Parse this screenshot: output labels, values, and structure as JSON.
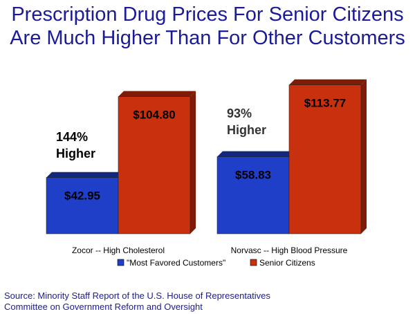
{
  "title": {
    "line1": "Prescription Drug Prices For Senior Citizens",
    "line2": "Are Much Higher Than For Other Customers"
  },
  "source": {
    "line1": "Source:  Minority Staff Report of the U.S. House of Representatives",
    "line2": "Committee on Government Reform and Oversight"
  },
  "colors": {
    "title": "#1b1b9a",
    "blue": "#1f3fc8",
    "red": "#c8300e",
    "blue_side": "#12287e",
    "red_side": "#7e1c07"
  },
  "chart_data": {
    "type": "bar",
    "categories": [
      "Zocor -- High Cholesterol",
      "Norvasc -- High Blood Pressure"
    ],
    "series": [
      {
        "name": "\"Most Favored Customers\"",
        "values": [
          42.95,
          58.83
        ],
        "labels": [
          "$42.95",
          "$58.83"
        ]
      },
      {
        "name": "Senior Citizens",
        "values": [
          104.8,
          113.77
        ],
        "labels": [
          "$104.80",
          "$113.77"
        ]
      }
    ],
    "annotations": [
      {
        "lines": [
          "144%",
          "Higher"
        ]
      },
      {
        "lines": [
          "93%",
          "Higher"
        ]
      }
    ],
    "ylim": [
      0,
      130
    ],
    "grid": false,
    "legend": "bottom"
  }
}
